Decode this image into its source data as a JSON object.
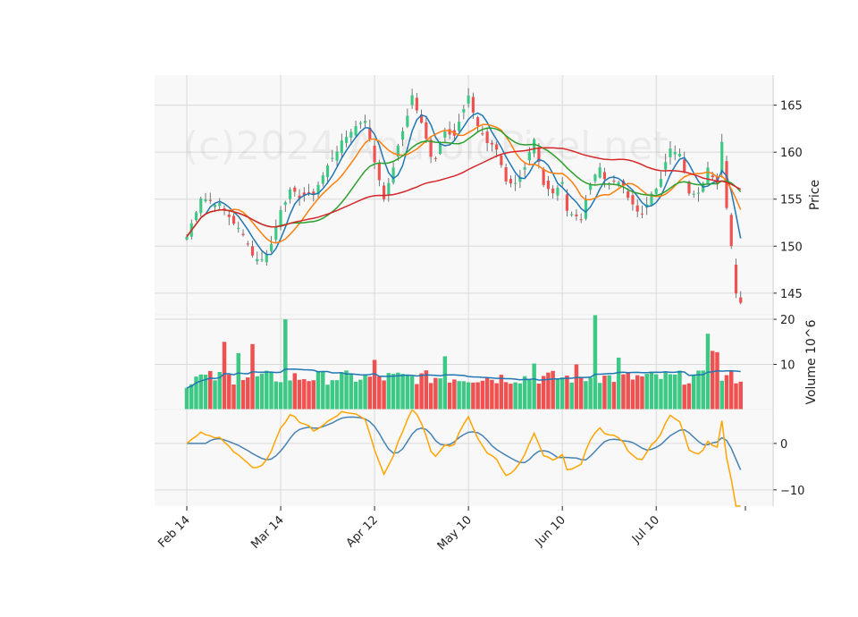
{
  "chart_data": {
    "type": "candlestick",
    "watermark": "(c)2024 AndroidPixel.net",
    "x_tick_labels": [
      "Feb 14",
      "Mar 14",
      "Apr 12",
      "May 10",
      "Jun 10",
      "Jul 10"
    ],
    "x_tick_indices": [
      0,
      20,
      40,
      60,
      80,
      100
    ],
    "num_sessions": 119,
    "price_panel": {
      "ylabel": "Price",
      "ylim": [
        142.7,
        168.2
      ],
      "yticks": [
        145,
        150,
        155,
        160,
        165
      ],
      "keyframes": [
        [
          0,
          151
        ],
        [
          3,
          155.2
        ],
        [
          7,
          154.4
        ],
        [
          10,
          152.5
        ],
        [
          13,
          150.4
        ],
        [
          14,
          149
        ],
        [
          16,
          148.5
        ],
        [
          18,
          150.2
        ],
        [
          20,
          154
        ],
        [
          22,
          155.8
        ],
        [
          24,
          155.3
        ],
        [
          27,
          155.6
        ],
        [
          29,
          157.5
        ],
        [
          31,
          159.5
        ],
        [
          33,
          161
        ],
        [
          35,
          162.3
        ],
        [
          37,
          163.2
        ],
        [
          38,
          163.5
        ],
        [
          40,
          159
        ],
        [
          42,
          155.2
        ],
        [
          43,
          156.5
        ],
        [
          45,
          160.5
        ],
        [
          47,
          164
        ],
        [
          48,
          166
        ],
        [
          50,
          163
        ],
        [
          52,
          159.7
        ],
        [
          53,
          159.5
        ],
        [
          55,
          162.4
        ],
        [
          57,
          161.8
        ],
        [
          59,
          164.5
        ],
        [
          60,
          165.8
        ],
        [
          62,
          162.8
        ],
        [
          64,
          161
        ],
        [
          66,
          160.3
        ],
        [
          68,
          157
        ],
        [
          70,
          156.6
        ],
        [
          72,
          158.5
        ],
        [
          74,
          161.2
        ],
        [
          76,
          156.3
        ],
        [
          78,
          155.5
        ],
        [
          80,
          156.8
        ],
        [
          81,
          154
        ],
        [
          82,
          153.5
        ],
        [
          84,
          153
        ],
        [
          85,
          155
        ],
        [
          86,
          156.5
        ],
        [
          88,
          158.5
        ],
        [
          89,
          156.9
        ],
        [
          91,
          157
        ],
        [
          93,
          156.5
        ],
        [
          95,
          154.2
        ],
        [
          97,
          153.2
        ],
        [
          99,
          155.6
        ],
        [
          101,
          157
        ],
        [
          103,
          160.5
        ],
        [
          105,
          160
        ],
        [
          107,
          155.5
        ],
        [
          109,
          155.5
        ],
        [
          111,
          158.2
        ],
        [
          113,
          156.8
        ],
        [
          114,
          161.3
        ],
        [
          115,
          154.3
        ],
        [
          116,
          150
        ],
        [
          117,
          144.8
        ],
        [
          118,
          143.8
        ]
      ],
      "moving_averages": [
        {
          "window": 5,
          "color": "#1f77b4"
        },
        {
          "window": 10,
          "color": "#ff7f0e"
        },
        {
          "window": 20,
          "color": "#2ca02c"
        },
        {
          "window": 50,
          "color": "#d62728"
        }
      ]
    },
    "volume_panel": {
      "ylabel": "Volume  10^6",
      "ylim": [
        0,
        21
      ],
      "yticks": [
        10,
        20
      ],
      "tick_labels": [
        "10",
        "20"
      ],
      "ma_window": 20,
      "ma_color": "#1f77b4",
      "up_color": "#3dc985",
      "down_color": "#ef5050",
      "spikes": {
        "0": 4.8,
        "8": 15,
        "11": 12.5,
        "14": 14.5,
        "21": 20,
        "40": 11,
        "55": 11.8,
        "74": 10.2,
        "83": 10,
        "87": 21,
        "92": 11.5,
        "111": 16.8,
        "112": 13,
        "113": 12.7
      }
    },
    "indicator_panel": {
      "ylim": [
        -13.5,
        7.3
      ],
      "yticks": [
        -10,
        0
      ],
      "tick_labels": [
        "−10",
        "0"
      ],
      "series": [
        {
          "name": "",
          "color": "#4682b4"
        },
        {
          "name": "",
          "color": "#ffa500"
        }
      ]
    },
    "colors": {
      "up": "#3dc985",
      "down": "#ef5050",
      "panel_bg": "#f8f8f8",
      "grid": "#d9d9d9"
    }
  }
}
